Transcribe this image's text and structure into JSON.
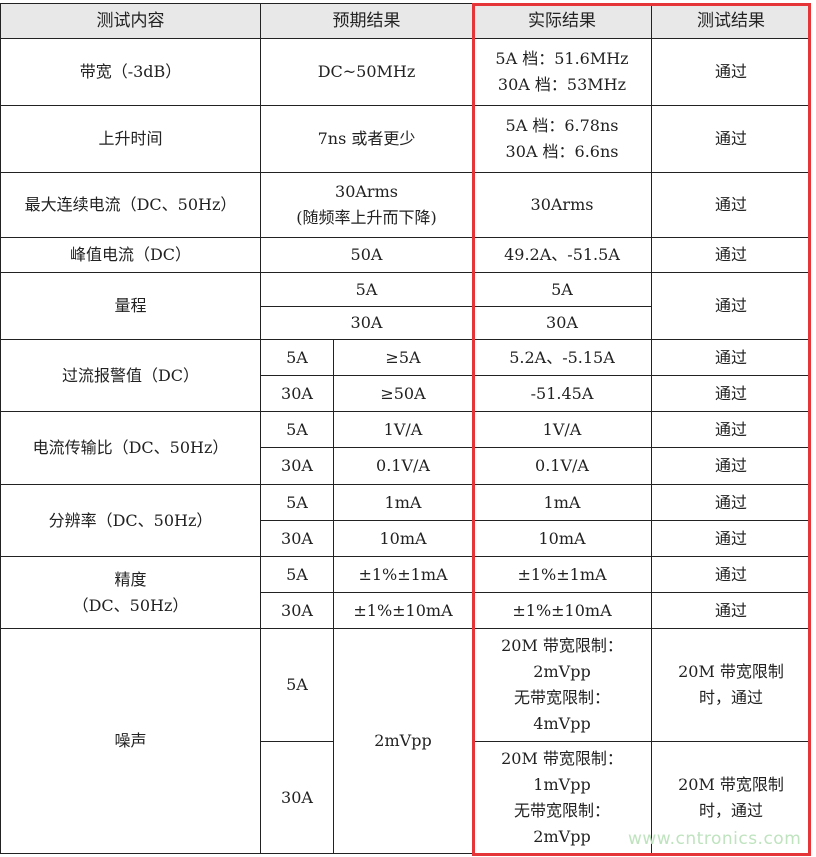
{
  "header": {
    "c1": "测试内容",
    "c2": "预期结果",
    "c3": "实际结果",
    "c4": "测试结果"
  },
  "rows": {
    "bw": {
      "item": "带宽（-3dB）",
      "exp": "DC~50MHz",
      "act1": "5A 档：51.6MHz",
      "act2": "30A 档：53MHz",
      "res": "通过"
    },
    "rise": {
      "item": "上升时间",
      "exp": "7ns 或者更少",
      "act1": "5A 档：6.78ns",
      "act2": "30A 档：6.6ns",
      "res": "通过"
    },
    "maxi": {
      "item": "最大连续电流（DC、50Hz）",
      "exp1": "30Arms",
      "exp2": "(随频率上升而下降)",
      "act": "30Arms",
      "res": "通过"
    },
    "peak": {
      "item": "峰值电流（DC）",
      "exp": "50A",
      "act": "49.2A、-51.5A",
      "res": "通过"
    },
    "range": {
      "item": "量程",
      "exp1": "5A",
      "act1": "5A",
      "exp2": "30A",
      "act2": "30A",
      "res": "通过"
    },
    "ocp": {
      "item": "过流报警值（DC）",
      "r1": {
        "rng": "5A",
        "exp": "≥5A",
        "act": "5.2A、-5.15A",
        "res": "通过"
      },
      "r2": {
        "rng": "30A",
        "exp": "≥50A",
        "act": "-51.45A",
        "res": "通过"
      }
    },
    "ratio": {
      "item": "电流传输比（DC、50Hz）",
      "r1": {
        "rng": "5A",
        "exp": "1V/A",
        "act": "1V/A",
        "res": "通过"
      },
      "r2": {
        "rng": "30A",
        "exp": "0.1V/A",
        "act": "0.1V/A",
        "res": "通过"
      }
    },
    "resol": {
      "item": "分辨率（DC、50Hz）",
      "r1": {
        "rng": "5A",
        "exp": "1mA",
        "act": "1mA",
        "res": "通过"
      },
      "r2": {
        "rng": "30A",
        "exp": "10mA",
        "act": "10mA",
        "res": "通过"
      }
    },
    "acc": {
      "item1": "精度",
      "item2": "（DC、50Hz）",
      "r1": {
        "rng": "5A",
        "exp": "±1%±1mA",
        "act": "±1%±1mA",
        "res": "通过"
      },
      "r2": {
        "rng": "30A",
        "exp": "±1%±10mA",
        "act": "±1%±10mA",
        "res": "通过"
      }
    },
    "noise": {
      "item": "噪声",
      "exp": "2mVpp",
      "r1": {
        "rng": "5A",
        "act": [
          "20M 带宽限制：",
          "2mVpp",
          "无带宽限制：",
          "4mVpp"
        ],
        "res1": "20M 带宽限制",
        "res2": "时，通过"
      },
      "r2": {
        "rng": "30A",
        "act": [
          "20M 带宽限制：",
          "1mVpp",
          "无带宽限制：",
          "2mVpp"
        ],
        "res1": "20M 带宽限制",
        "res2": "时，通过"
      }
    }
  },
  "watermark": "www.cntronics.com",
  "colors": {
    "highlight": "#e53538",
    "header_bg": "#e8e8e8"
  }
}
